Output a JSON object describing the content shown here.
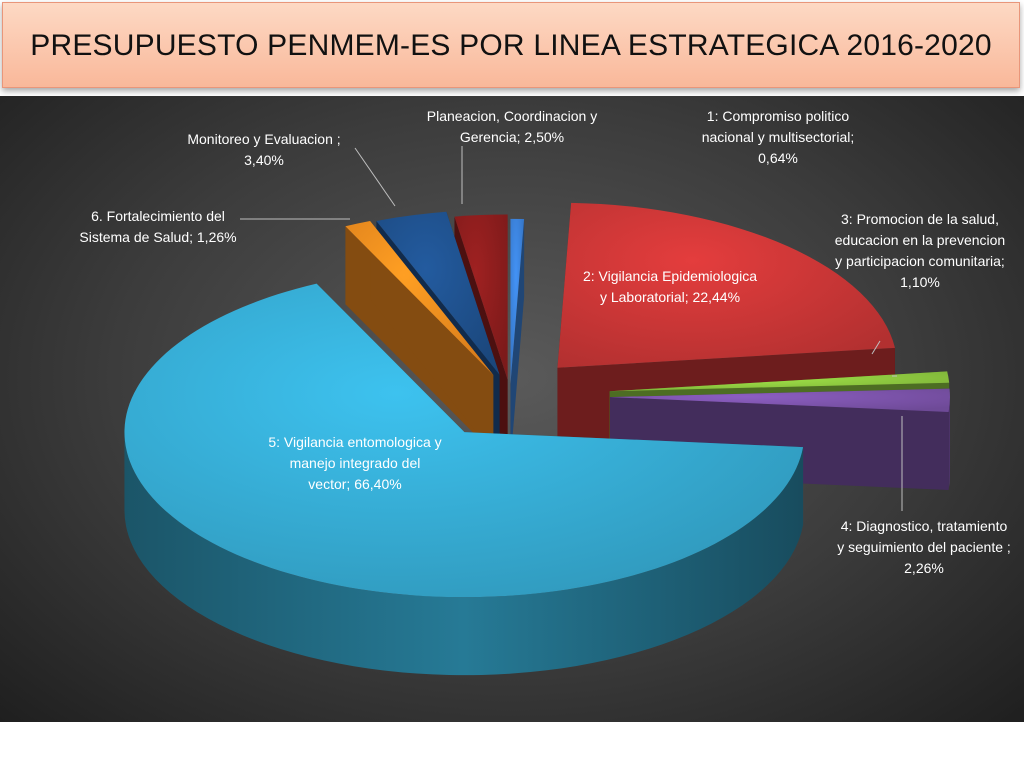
{
  "title": "PRESUPUESTO PENMEM-ES POR LINEA ESTRATEGICA 2016-2020",
  "chart_data": {
    "type": "pie",
    "title": "PRESUPUESTO PENMEM-ES POR LINEA ESTRATEGICA 2016-2020",
    "legend": "none",
    "slices": [
      {
        "key": "s1",
        "name": "1: Compromiso politico nacional y multisectorial",
        "value": 0.64,
        "label": "0,64%",
        "color": "#3a7fd5",
        "lines": [
          "1: Compromiso politico",
          "nacional y multisectorial;",
          "0,64%"
        ]
      },
      {
        "key": "s2",
        "name": "2: Vigilancia Epidemiologica y Laboratorial",
        "value": 22.44,
        "label": "22,44%",
        "color": "#c63535",
        "lines": [
          "2: Vigilancia  Epidemiologica",
          "y Laboratorial; 22,44%"
        ]
      },
      {
        "key": "s3",
        "name": "3: Promocion de la salud, educacion en la prevencion y participacion comunitaria",
        "value": 1.1,
        "label": "1,10%",
        "color": "#8cc63f",
        "lines": [
          "3: Promocion de la salud,",
          "educacion en la prevencion",
          "y participacion comunitaria;",
          "1,10%"
        ]
      },
      {
        "key": "s4",
        "name": "4: Diagnostico, tratamiento y seguimiento del paciente",
        "value": 2.26,
        "label": "2,26%",
        "color": "#7a52a8",
        "lines": [
          "4: Diagnostico, tratamiento",
          "y seguimiento del paciente ;",
          "2,26%"
        ]
      },
      {
        "key": "s5",
        "name": "5: Vigilancia entomologica y manejo integrado del vector",
        "value": 66.4,
        "label": "66,40%",
        "color": "#35a9d0",
        "lines": [
          "5: Vigilancia entomologica y",
          "manejo integrado del",
          "vector; 66,40%"
        ]
      },
      {
        "key": "s6",
        "name": "6. Fortalecimiento del Sistema de Salud",
        "value": 1.26,
        "label": "1,26%",
        "color": "#f08a1e",
        "lines": [
          "6. Fortalecimiento del",
          "Sistema de Salud; 1,26%"
        ]
      },
      {
        "key": "s7",
        "name": "Monitoreo y Evaluacion",
        "value": 3.4,
        "label": "3,40%",
        "color": "#1e4f8a",
        "lines": [
          "Monitoreo y Evaluacion ;",
          "3,40%"
        ]
      },
      {
        "key": "s8",
        "name": "Planeacion, Coordinacion y Gerencia",
        "value": 2.5,
        "label": "2,50%",
        "color": "#8a1d1d",
        "lines": [
          "Planeacion, Coordinacion y",
          "Gerencia; 2,50%"
        ]
      }
    ]
  }
}
